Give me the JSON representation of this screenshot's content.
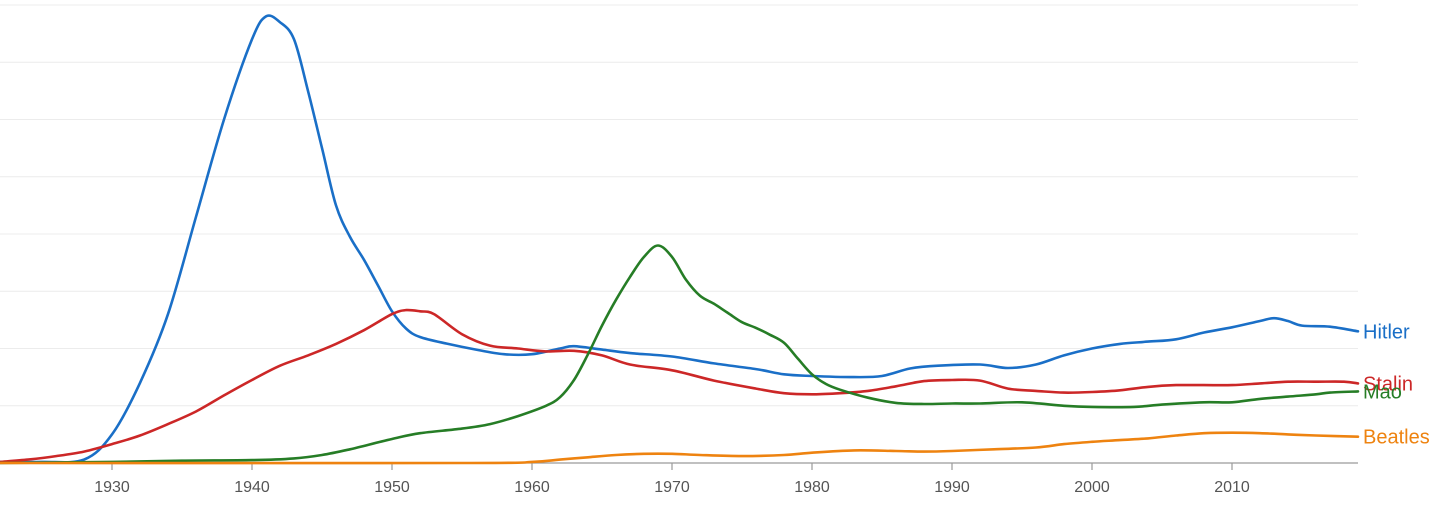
{
  "chart_data": {
    "type": "line",
    "title": "",
    "xlabel": "",
    "ylabel": "",
    "xlim": [
      1922,
      2019
    ],
    "ylim": [
      0,
      8
    ],
    "x_ticks": [
      1930,
      1940,
      1950,
      1960,
      1970,
      1980,
      1990,
      2000,
      2010
    ],
    "grid": true,
    "legend": "right-edge labels",
    "series": [
      {
        "name": "Hitler",
        "color": "#1a6fc7",
        "points": [
          [
            1922,
            0.02
          ],
          [
            1925,
            0.02
          ],
          [
            1928,
            0.06
          ],
          [
            1930,
            0.5
          ],
          [
            1932,
            1.4
          ],
          [
            1934,
            2.6
          ],
          [
            1936,
            4.3
          ],
          [
            1938,
            6.0
          ],
          [
            1940,
            7.4
          ],
          [
            1941,
            7.8
          ],
          [
            1942,
            7.7
          ],
          [
            1943,
            7.4
          ],
          [
            1944,
            6.5
          ],
          [
            1945,
            5.5
          ],
          [
            1946,
            4.5
          ],
          [
            1947,
            3.95
          ],
          [
            1948,
            3.55
          ],
          [
            1949,
            3.1
          ],
          [
            1950,
            2.65
          ],
          [
            1951,
            2.35
          ],
          [
            1952,
            2.2
          ],
          [
            1954,
            2.08
          ],
          [
            1956,
            1.98
          ],
          [
            1958,
            1.9
          ],
          [
            1960,
            1.9
          ],
          [
            1962,
            2.0
          ],
          [
            1963,
            2.04
          ],
          [
            1965,
            1.98
          ],
          [
            1967,
            1.92
          ],
          [
            1970,
            1.86
          ],
          [
            1973,
            1.74
          ],
          [
            1976,
            1.64
          ],
          [
            1978,
            1.55
          ],
          [
            1980,
            1.52
          ],
          [
            1983,
            1.5
          ],
          [
            1985,
            1.52
          ],
          [
            1987,
            1.65
          ],
          [
            1989,
            1.7
          ],
          [
            1992,
            1.72
          ],
          [
            1994,
            1.66
          ],
          [
            1996,
            1.72
          ],
          [
            1998,
            1.88
          ],
          [
            2000,
            2.0
          ],
          [
            2002,
            2.08
          ],
          [
            2004,
            2.12
          ],
          [
            2006,
            2.16
          ],
          [
            2008,
            2.28
          ],
          [
            2010,
            2.37
          ],
          [
            2012,
            2.48
          ],
          [
            2013,
            2.53
          ],
          [
            2014,
            2.48
          ],
          [
            2015,
            2.4
          ],
          [
            2017,
            2.38
          ],
          [
            2019,
            2.3
          ]
        ]
      },
      {
        "name": "Stalin",
        "color": "#cc2727",
        "points": [
          [
            1922,
            0.02
          ],
          [
            1924,
            0.06
          ],
          [
            1926,
            0.12
          ],
          [
            1928,
            0.2
          ],
          [
            1930,
            0.33
          ],
          [
            1932,
            0.48
          ],
          [
            1934,
            0.68
          ],
          [
            1936,
            0.9
          ],
          [
            1938,
            1.18
          ],
          [
            1940,
            1.45
          ],
          [
            1942,
            1.7
          ],
          [
            1944,
            1.88
          ],
          [
            1946,
            2.08
          ],
          [
            1948,
            2.32
          ],
          [
            1950,
            2.6
          ],
          [
            1951,
            2.67
          ],
          [
            1952,
            2.65
          ],
          [
            1953,
            2.6
          ],
          [
            1955,
            2.25
          ],
          [
            1957,
            2.05
          ],
          [
            1959,
            2.0
          ],
          [
            1961,
            1.95
          ],
          [
            1963,
            1.96
          ],
          [
            1965,
            1.88
          ],
          [
            1967,
            1.72
          ],
          [
            1970,
            1.62
          ],
          [
            1973,
            1.44
          ],
          [
            1976,
            1.3
          ],
          [
            1978,
            1.22
          ],
          [
            1980,
            1.2
          ],
          [
            1982,
            1.22
          ],
          [
            1984,
            1.26
          ],
          [
            1986,
            1.34
          ],
          [
            1988,
            1.43
          ],
          [
            1990,
            1.45
          ],
          [
            1992,
            1.44
          ],
          [
            1994,
            1.3
          ],
          [
            1996,
            1.26
          ],
          [
            1998,
            1.23
          ],
          [
            2000,
            1.24
          ],
          [
            2002,
            1.27
          ],
          [
            2004,
            1.33
          ],
          [
            2006,
            1.36
          ],
          [
            2008,
            1.36
          ],
          [
            2010,
            1.36
          ],
          [
            2012,
            1.39
          ],
          [
            2014,
            1.42
          ],
          [
            2016,
            1.42
          ],
          [
            2018,
            1.42
          ],
          [
            2019,
            1.39
          ]
        ]
      },
      {
        "name": "Mao",
        "color": "#267d26",
        "points": [
          [
            1922,
            0.0
          ],
          [
            1930,
            0.02
          ],
          [
            1935,
            0.04
          ],
          [
            1940,
            0.05
          ],
          [
            1943,
            0.08
          ],
          [
            1945,
            0.14
          ],
          [
            1947,
            0.24
          ],
          [
            1950,
            0.42
          ],
          [
            1952,
            0.52
          ],
          [
            1955,
            0.6
          ],
          [
            1957,
            0.68
          ],
          [
            1959,
            0.82
          ],
          [
            1961,
            1.0
          ],
          [
            1962,
            1.15
          ],
          [
            1963,
            1.45
          ],
          [
            1964,
            1.9
          ],
          [
            1965,
            2.4
          ],
          [
            1966,
            2.85
          ],
          [
            1967,
            3.25
          ],
          [
            1968,
            3.6
          ],
          [
            1969,
            3.8
          ],
          [
            1970,
            3.6
          ],
          [
            1971,
            3.2
          ],
          [
            1972,
            2.92
          ],
          [
            1973,
            2.78
          ],
          [
            1974,
            2.62
          ],
          [
            1975,
            2.46
          ],
          [
            1976,
            2.36
          ],
          [
            1977,
            2.24
          ],
          [
            1978,
            2.1
          ],
          [
            1979,
            1.82
          ],
          [
            1980,
            1.55
          ],
          [
            1981,
            1.38
          ],
          [
            1982,
            1.28
          ],
          [
            1984,
            1.14
          ],
          [
            1986,
            1.05
          ],
          [
            1988,
            1.03
          ],
          [
            1990,
            1.04
          ],
          [
            1992,
            1.04
          ],
          [
            1995,
            1.06
          ],
          [
            1998,
            1.0
          ],
          [
            2000,
            0.98
          ],
          [
            2003,
            0.98
          ],
          [
            2005,
            1.02
          ],
          [
            2008,
            1.06
          ],
          [
            2010,
            1.06
          ],
          [
            2012,
            1.12
          ],
          [
            2014,
            1.16
          ],
          [
            2016,
            1.2
          ],
          [
            2017,
            1.23
          ],
          [
            2019,
            1.25
          ]
        ]
      },
      {
        "name": "Beatles",
        "color": "#ee8310",
        "points": [
          [
            1922,
            0.0
          ],
          [
            1955,
            0.0
          ],
          [
            1960,
            0.02
          ],
          [
            1962,
            0.06
          ],
          [
            1964,
            0.1
          ],
          [
            1966,
            0.14
          ],
          [
            1968,
            0.16
          ],
          [
            1970,
            0.16
          ],
          [
            1972,
            0.14
          ],
          [
            1975,
            0.12
          ],
          [
            1978,
            0.14
          ],
          [
            1980,
            0.18
          ],
          [
            1983,
            0.22
          ],
          [
            1986,
            0.21
          ],
          [
            1988,
            0.2
          ],
          [
            1990,
            0.21
          ],
          [
            1993,
            0.24
          ],
          [
            1996,
            0.27
          ],
          [
            1998,
            0.33
          ],
          [
            2000,
            0.37
          ],
          [
            2002,
            0.4
          ],
          [
            2004,
            0.43
          ],
          [
            2006,
            0.48
          ],
          [
            2008,
            0.52
          ],
          [
            2010,
            0.53
          ],
          [
            2012,
            0.52
          ],
          [
            2014,
            0.5
          ],
          [
            2016,
            0.48
          ],
          [
            2019,
            0.46
          ]
        ]
      }
    ]
  }
}
